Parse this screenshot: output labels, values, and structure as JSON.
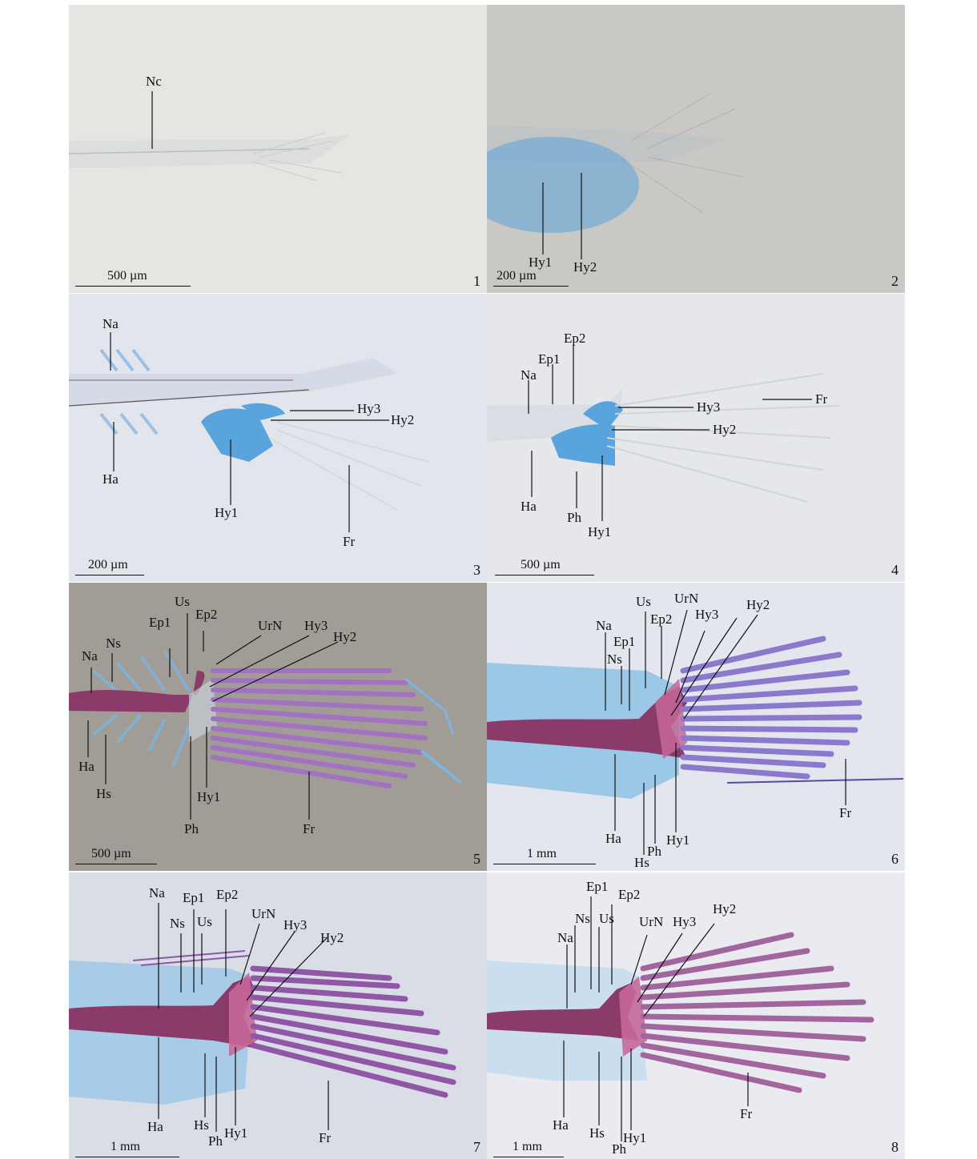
{
  "panels": [
    {
      "number": "1",
      "scale": "500 µm",
      "labels": {
        "nc": "Nc"
      }
    },
    {
      "number": "2",
      "scale": "200 µm",
      "labels": {
        "hy1": "Hy1",
        "hy2": "Hy2"
      }
    },
    {
      "number": "3",
      "scale": "200 µm",
      "labels": {
        "na": "Na",
        "ha": "Ha",
        "hy3": "Hy3",
        "hy2": "Hy2",
        "hy1": "Hy1",
        "fr": "Fr"
      }
    },
    {
      "number": "4",
      "scale": "500 µm",
      "labels": {
        "ep2": "Ep2",
        "ep1": "Ep1",
        "na": "Na",
        "hy3": "Hy3",
        "hy2": "Hy2",
        "fr": "Fr",
        "ha": "Ha",
        "ph": "Ph",
        "hy1": "Hy1"
      }
    },
    {
      "number": "5",
      "scale": "500 µm",
      "labels": {
        "us": "Us",
        "ep1": "Ep1",
        "ep2": "Ep2",
        "urn": "UrN",
        "hy3": "Hy3",
        "hy2": "Hy2",
        "ns": "Ns",
        "na": "Na",
        "ha": "Ha",
        "hs": "Hs",
        "hy1": "Hy1",
        "ph": "Ph",
        "fr": "Fr"
      }
    },
    {
      "number": "6",
      "scale": "1 mm",
      "labels": {
        "us": "Us",
        "urn": "UrN",
        "hy2": "Hy2",
        "na": "Na",
        "ep2": "Ep2",
        "hy3": "Hy3",
        "ep1": "Ep1",
        "ns": "Ns",
        "fr": "Fr",
        "ha": "Ha",
        "hy1": "Hy1",
        "ph": "Ph",
        "hs": "Hs"
      }
    },
    {
      "number": "7",
      "scale": "1 mm",
      "labels": {
        "na": "Na",
        "ep1": "Ep1",
        "ep2": "Ep2",
        "ns": "Ns",
        "us": "Us",
        "urn": "UrN",
        "hy3": "Hy3",
        "hy2": "Hy2",
        "ha": "Ha",
        "hs": "Hs",
        "hy1": "Hy1",
        "ph": "Ph",
        "fr": "Fr"
      }
    },
    {
      "number": "8",
      "scale": "1 mm",
      "labels": {
        "ep1": "Ep1",
        "ep2": "Ep2",
        "ns": "Ns",
        "us": "Us",
        "urn": "UrN",
        "hy3": "Hy3",
        "hy2": "Hy2",
        "na": "Na",
        "ha": "Ha",
        "hs": "Hs",
        "hy1": "Hy1",
        "ph": "Ph",
        "fr": "Fr"
      }
    }
  ]
}
